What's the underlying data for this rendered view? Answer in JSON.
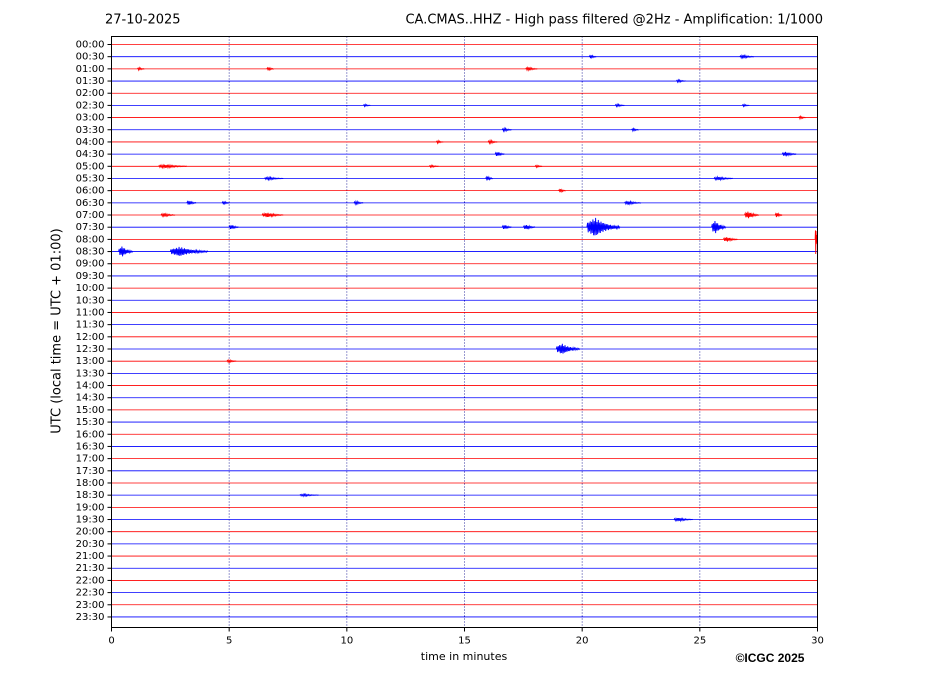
{
  "chart_data": {
    "type": "helicorder",
    "date": "27-10-2025",
    "title": "CA.CMAS..HHZ - High pass filtered @2Hz - Amplification: 1/1000",
    "ylabel": "UTC (local time = UTC + 01:00)",
    "xlabel": "time in minutes",
    "copyright": "©ICGC 2025",
    "xlim": [
      0,
      30
    ],
    "xticks": [
      0,
      5,
      10,
      15,
      20,
      25,
      30
    ],
    "grid": true,
    "row_colors": [
      "#ff0000",
      "#0000ff"
    ],
    "categories": [
      "00:00",
      "00:30",
      "01:00",
      "01:30",
      "02:00",
      "02:30",
      "03:00",
      "03:30",
      "04:00",
      "04:30",
      "05:00",
      "05:30",
      "06:00",
      "06:30",
      "07:00",
      "07:30",
      "08:00",
      "08:30",
      "09:00",
      "09:30",
      "10:00",
      "10:30",
      "11:00",
      "11:30",
      "12:00",
      "12:30",
      "13:00",
      "13:30",
      "14:00",
      "14:30",
      "15:00",
      "15:30",
      "16:00",
      "16:30",
      "17:00",
      "17:30",
      "18:00",
      "18:30",
      "19:00",
      "19:30",
      "20:00",
      "20:30",
      "21:00",
      "21:30",
      "22:00",
      "22:30",
      "23:00",
      "23:30"
    ],
    "events": [
      {
        "row": 1,
        "x": 20.3,
        "amp": 0.15,
        "duration": 0.3
      },
      {
        "row": 1,
        "x": 26.7,
        "amp": 0.15,
        "duration": 0.6
      },
      {
        "row": 2,
        "x": 1.1,
        "amp": 0.12,
        "duration": 0.3
      },
      {
        "row": 2,
        "x": 6.6,
        "amp": 0.15,
        "duration": 0.3
      },
      {
        "row": 2,
        "x": 17.6,
        "amp": 0.15,
        "duration": 0.5
      },
      {
        "row": 3,
        "x": 24.0,
        "amp": 0.12,
        "duration": 0.4
      },
      {
        "row": 5,
        "x": 10.7,
        "amp": 0.1,
        "duration": 0.3
      },
      {
        "row": 5,
        "x": 21.4,
        "amp": 0.12,
        "duration": 0.4
      },
      {
        "row": 5,
        "x": 26.8,
        "amp": 0.1,
        "duration": 0.3
      },
      {
        "row": 6,
        "x": 29.2,
        "amp": 0.12,
        "duration": 0.3
      },
      {
        "row": 7,
        "x": 16.6,
        "amp": 0.15,
        "duration": 0.4
      },
      {
        "row": 7,
        "x": 22.1,
        "amp": 0.12,
        "duration": 0.3
      },
      {
        "row": 8,
        "x": 13.8,
        "amp": 0.12,
        "duration": 0.3
      },
      {
        "row": 8,
        "x": 16.0,
        "amp": 0.15,
        "duration": 0.4
      },
      {
        "row": 9,
        "x": 16.3,
        "amp": 0.2,
        "duration": 0.4
      },
      {
        "row": 9,
        "x": 28.5,
        "amp": 0.2,
        "duration": 0.6
      },
      {
        "row": 10,
        "x": 2.0,
        "amp": 0.15,
        "duration": 1.2
      },
      {
        "row": 10,
        "x": 13.5,
        "amp": 0.1,
        "duration": 0.4
      },
      {
        "row": 10,
        "x": 18.0,
        "amp": 0.1,
        "duration": 0.3
      },
      {
        "row": 11,
        "x": 6.5,
        "amp": 0.12,
        "duration": 0.8
      },
      {
        "row": 11,
        "x": 15.9,
        "amp": 0.2,
        "duration": 0.3
      },
      {
        "row": 11,
        "x": 25.6,
        "amp": 0.15,
        "duration": 0.8
      },
      {
        "row": 12,
        "x": 19.0,
        "amp": 0.15,
        "duration": 0.3
      },
      {
        "row": 13,
        "x": 3.2,
        "amp": 0.2,
        "duration": 0.4
      },
      {
        "row": 13,
        "x": 4.7,
        "amp": 0.15,
        "duration": 0.3
      },
      {
        "row": 13,
        "x": 10.3,
        "amp": 0.15,
        "duration": 0.4
      },
      {
        "row": 13,
        "x": 21.8,
        "amp": 0.15,
        "duration": 0.7
      },
      {
        "row": 14,
        "x": 2.1,
        "amp": 0.15,
        "duration": 0.6
      },
      {
        "row": 14,
        "x": 6.4,
        "amp": 0.2,
        "duration": 0.9
      },
      {
        "row": 14,
        "x": 26.9,
        "amp": 0.3,
        "duration": 0.6
      },
      {
        "row": 14,
        "x": 28.2,
        "amp": 0.2,
        "duration": 0.3
      },
      {
        "row": 15,
        "x": 5.0,
        "amp": 0.2,
        "duration": 0.4
      },
      {
        "row": 15,
        "x": 16.6,
        "amp": 0.2,
        "duration": 0.4
      },
      {
        "row": 15,
        "x": 17.5,
        "amp": 0.2,
        "duration": 0.5
      },
      {
        "row": 15,
        "x": 20.2,
        "amp": 0.8,
        "duration": 1.4
      },
      {
        "row": 15,
        "x": 25.5,
        "amp": 0.55,
        "duration": 0.6
      },
      {
        "row": 16,
        "x": 26.0,
        "amp": 0.2,
        "duration": 0.6
      },
      {
        "row": 16,
        "x": 29.9,
        "amp": 1.2,
        "duration": 0.1
      },
      {
        "row": 17,
        "x": 0.3,
        "amp": 0.45,
        "duration": 0.6
      },
      {
        "row": 17,
        "x": 2.5,
        "amp": 0.4,
        "duration": 1.6
      },
      {
        "row": 25,
        "x": 18.9,
        "amp": 0.45,
        "duration": 1.0
      },
      {
        "row": 26,
        "x": 4.9,
        "amp": 0.12,
        "duration": 0.4
      },
      {
        "row": 37,
        "x": 8.0,
        "amp": 0.1,
        "duration": 0.8
      },
      {
        "row": 39,
        "x": 23.9,
        "amp": 0.15,
        "duration": 0.8
      }
    ]
  }
}
